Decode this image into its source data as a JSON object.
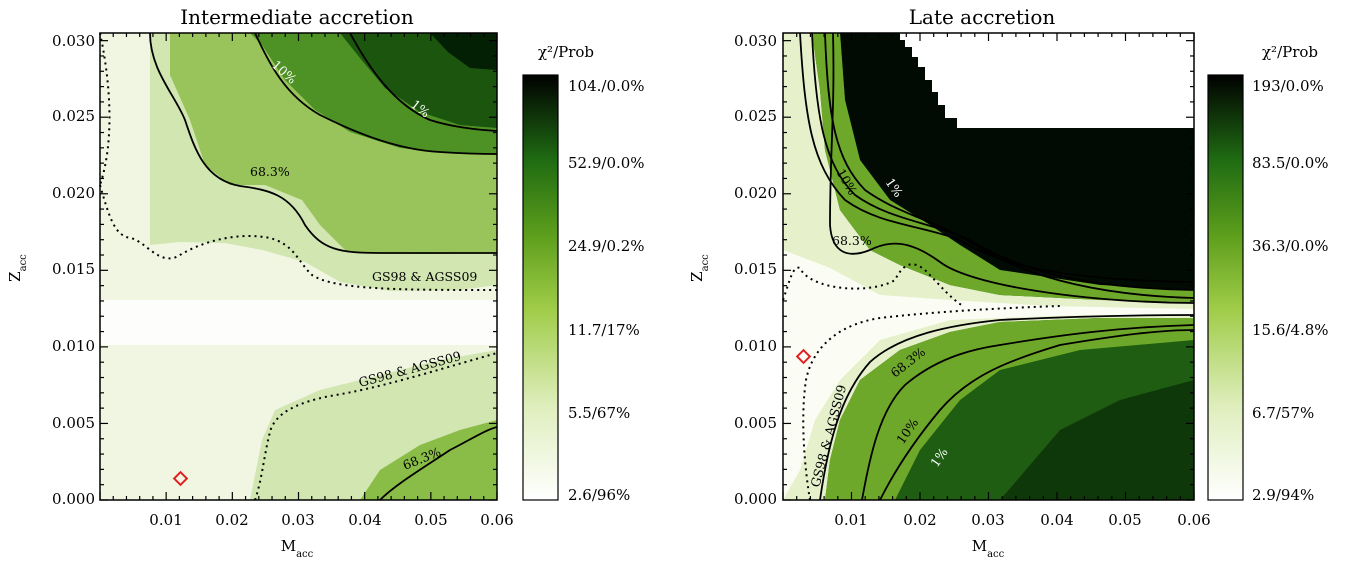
{
  "chart_data": [
    {
      "type": "heatmap",
      "title": "Intermediate accretion",
      "xlabel": "M",
      "xlabel_sub": "acc",
      "ylabel": "Z",
      "ylabel_sub": "acc",
      "xlim": [
        0,
        0.06
      ],
      "ylim": [
        0,
        0.0305
      ],
      "x_ticks": [
        "0.01",
        "0.02",
        "0.03",
        "0.04",
        "0.05",
        "0.06"
      ],
      "y_ticks": [
        "0.000",
        "0.005",
        "0.010",
        "0.015",
        "0.020",
        "0.025",
        "0.030"
      ],
      "colorbar_title": "χ²/Prob",
      "colorbar_labels": [
        "104./0.0%",
        "52.9/0.0%",
        "24.9/0.2%",
        "11.7/17%",
        "5.5/67%",
        "2.6/96%"
      ],
      "best_fit_marker": {
        "x": 0.012,
        "y": 0.0013
      },
      "contours": [
        {
          "label": "1%",
          "style": "solid"
        },
        {
          "label": "10%",
          "style": "solid"
        },
        {
          "label": "68.3%",
          "style": "solid"
        },
        {
          "label": "GS98 & AGSS09",
          "style": "dotted"
        },
        {
          "label": "GS98 & AGSS09",
          "style": "dotted"
        },
        {
          "label": "68.3%",
          "style": "solid"
        }
      ],
      "colors": {
        "low": "#ffffff",
        "mid": "#6aa81c",
        "high": "#000000",
        "marker": "#e02020"
      }
    },
    {
      "type": "heatmap",
      "title": "Late accretion",
      "xlabel": "M",
      "xlabel_sub": "acc",
      "ylabel": "Z",
      "ylabel_sub": "acc",
      "xlim": [
        0,
        0.06
      ],
      "ylim": [
        0,
        0.0305
      ],
      "x_ticks": [
        "0.01",
        "0.02",
        "0.03",
        "0.04",
        "0.05",
        "0.06"
      ],
      "y_ticks": [
        "0.000",
        "0.005",
        "0.010",
        "0.015",
        "0.020",
        "0.025",
        "0.030"
      ],
      "colorbar_title": "χ²/Prob",
      "colorbar_labels": [
        "193/0.0%",
        "83.5/0.0%",
        "36.3/0.0%",
        "15.6/4.8%",
        "6.7/57%",
        "2.9/94%"
      ],
      "best_fit_marker": {
        "x": 0.003,
        "y": 0.0093
      },
      "contours": [
        {
          "label": "10%",
          "style": "solid"
        },
        {
          "label": "1%",
          "style": "solid"
        },
        {
          "label": "68.3%",
          "style": "solid"
        },
        {
          "label": "68.3%",
          "style": "solid"
        },
        {
          "label": "10%",
          "style": "solid"
        },
        {
          "label": "1%",
          "style": "solid"
        },
        {
          "label": "GS98 & AGSS09",
          "style": "dotted"
        }
      ],
      "colors": {
        "low": "#ffffff",
        "mid": "#6aa81c",
        "high": "#000000",
        "marker": "#e02020"
      }
    }
  ]
}
